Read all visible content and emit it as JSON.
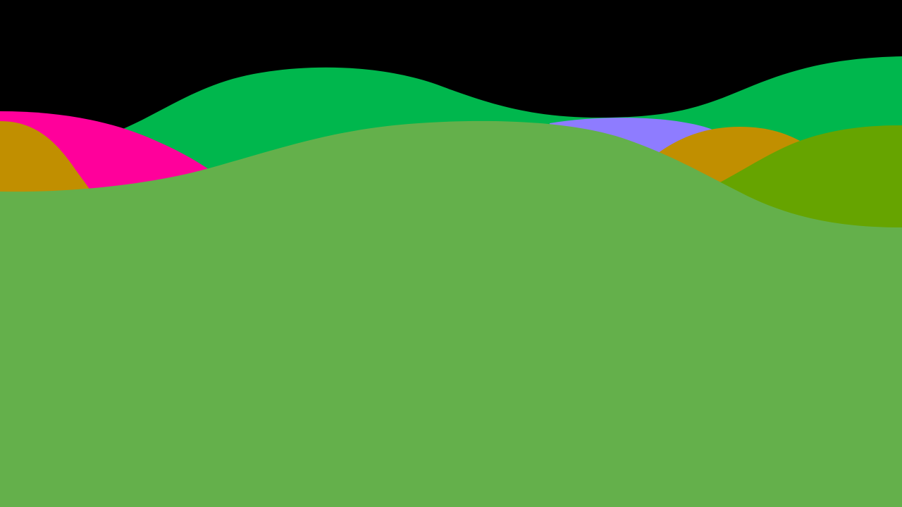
{
  "background_color": "#000000",
  "layers": [
    {
      "name": "back-green-hill",
      "color": "#00b74d"
    },
    {
      "name": "magenta-hill",
      "color": "#ff009b"
    },
    {
      "name": "left-ochre-hill",
      "color": "#c18f00"
    },
    {
      "name": "lavender-hill",
      "color": "#8e7cff"
    },
    {
      "name": "right-ochre-hill",
      "color": "#c18f00"
    },
    {
      "name": "olive-green-hill",
      "color": "#66a400"
    },
    {
      "name": "foreground-green-hill",
      "color": "#64b04b"
    }
  ]
}
